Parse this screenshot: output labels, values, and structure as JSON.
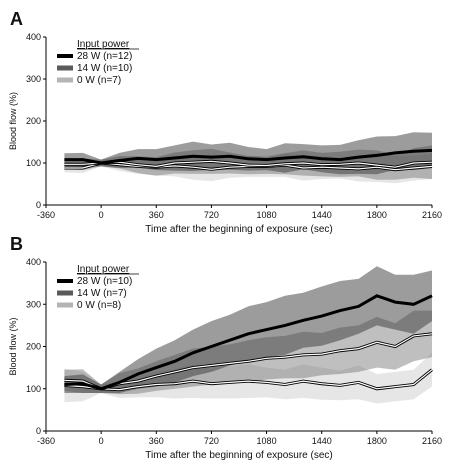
{
  "chart_data": [
    {
      "panel": "A",
      "type": "line",
      "xlabel": "Time after the beginning of exposure (sec)",
      "ylabel": "Blood flow (%)",
      "xlim": [
        -360,
        2160
      ],
      "ylim": [
        0,
        400
      ],
      "xticks": [
        "-360",
        "0",
        "360",
        "720",
        "1080",
        "1440",
        "1800",
        "2160"
      ],
      "yticks": [
        "0",
        "100",
        "200",
        "300",
        "400"
      ],
      "legend_title": "Input power",
      "legend_position": "top-left",
      "series": [
        {
          "name": "28 W (n=12)",
          "color": "#000000",
          "band_color": "#3a3a3a",
          "x": [
            -240,
            -120,
            0,
            120,
            240,
            360,
            480,
            600,
            720,
            840,
            960,
            1080,
            1200,
            1320,
            1440,
            1560,
            1680,
            1800,
            1920,
            2040,
            2160
          ],
          "mean": [
            108,
            108,
            100,
            106,
            111,
            108,
            112,
            116,
            114,
            116,
            110,
            108,
            112,
            115,
            110,
            108,
            114,
            118,
            124,
            128,
            130
          ],
          "sd": [
            15,
            16,
            8,
            18,
            22,
            25,
            30,
            35,
            30,
            32,
            28,
            25,
            35,
            30,
            32,
            35,
            40,
            45,
            40,
            45,
            42
          ]
        },
        {
          "name": "14 W (n=10)",
          "color": "#606060",
          "band_color": "#707070",
          "x": [
            -240,
            -120,
            0,
            120,
            240,
            360,
            480,
            600,
            720,
            840,
            960,
            1080,
            1200,
            1320,
            1440,
            1560,
            1680,
            1800,
            1920,
            2040,
            2160
          ],
          "mean": [
            97,
            97,
            100,
            102,
            96,
            92,
            100,
            102,
            104,
            100,
            95,
            94,
            98,
            100,
            96,
            97,
            100,
            95,
            90,
            100,
            102
          ],
          "sd": [
            12,
            14,
            8,
            15,
            20,
            22,
            25,
            28,
            30,
            25,
            22,
            20,
            25,
            30,
            28,
            30,
            32,
            35,
            30,
            35,
            40
          ]
        },
        {
          "name": "0 W (n=7)",
          "color": "#b0b0b0",
          "band_color": "#c8c8c8",
          "x": [
            -240,
            -120,
            0,
            120,
            240,
            360,
            480,
            600,
            720,
            840,
            960,
            1080,
            1200,
            1320,
            1440,
            1560,
            1680,
            1800,
            1920,
            2040,
            2160
          ],
          "mean": [
            88,
            88,
            100,
            96,
            92,
            90,
            93,
            90,
            85,
            90,
            92,
            92,
            95,
            88,
            90,
            88,
            86,
            90,
            84,
            88,
            92
          ],
          "sd": [
            10,
            12,
            8,
            15,
            18,
            20,
            25,
            30,
            28,
            25,
            25,
            25,
            28,
            30,
            28,
            25,
            30,
            35,
            32,
            30,
            30
          ]
        }
      ]
    },
    {
      "panel": "B",
      "type": "line",
      "xlabel": "Time after the beginning of exposure (sec)",
      "ylabel": "Blood flow (%)",
      "xlim": [
        -360,
        2160
      ],
      "ylim": [
        0,
        400
      ],
      "xticks": [
        "-360",
        "0",
        "360",
        "720",
        "1080",
        "1440",
        "1800",
        "2160"
      ],
      "yticks": [
        "0",
        "100",
        "200",
        "300",
        "400"
      ],
      "legend_title": "Input power",
      "legend_position": "top-left",
      "series": [
        {
          "name": "28 W (n=10)",
          "color": "#000000",
          "band_color": "#3a3a3a",
          "x": [
            -240,
            -120,
            0,
            120,
            240,
            360,
            480,
            600,
            720,
            840,
            960,
            1080,
            1200,
            1320,
            1440,
            1560,
            1680,
            1800,
            1920,
            2040,
            2160
          ],
          "mean": [
            110,
            112,
            100,
            115,
            135,
            150,
            165,
            185,
            200,
            215,
            230,
            240,
            250,
            262,
            272,
            285,
            295,
            320,
            305,
            300,
            320
          ],
          "sd": [
            20,
            22,
            10,
            25,
            35,
            45,
            50,
            55,
            60,
            60,
            65,
            65,
            70,
            65,
            70,
            70,
            65,
            70,
            65,
            70,
            60
          ]
        },
        {
          "name": "14 W (n=7)",
          "color": "#606060",
          "band_color": "#707070",
          "x": [
            -240,
            -120,
            0,
            120,
            240,
            360,
            480,
            600,
            720,
            840,
            960,
            1080,
            1200,
            1320,
            1440,
            1560,
            1680,
            1800,
            1920,
            2040,
            2160
          ],
          "mean": [
            120,
            118,
            100,
            112,
            118,
            130,
            140,
            150,
            155,
            160,
            165,
            172,
            175,
            180,
            182,
            190,
            195,
            210,
            200,
            225,
            230
          ],
          "sd": [
            25,
            28,
            10,
            25,
            30,
            35,
            40,
            45,
            45,
            45,
            50,
            50,
            50,
            55,
            50,
            55,
            55,
            60,
            55,
            60,
            55
          ]
        },
        {
          "name": "0 W (n=8)",
          "color": "#b0b0b0",
          "band_color": "#c8c8c8",
          "x": [
            -240,
            -120,
            0,
            120,
            240,
            360,
            480,
            600,
            720,
            840,
            960,
            1080,
            1200,
            1320,
            1440,
            1560,
            1680,
            1800,
            1920,
            2040,
            2160
          ],
          "mean": [
            108,
            105,
            100,
            98,
            105,
            110,
            112,
            118,
            112,
            115,
            118,
            115,
            110,
            118,
            112,
            108,
            115,
            100,
            105,
            110,
            145
          ],
          "sd": [
            40,
            35,
            10,
            20,
            25,
            30,
            35,
            40,
            35,
            38,
            40,
            35,
            35,
            40,
            38,
            35,
            40,
            35,
            35,
            35,
            40
          ]
        }
      ]
    }
  ]
}
